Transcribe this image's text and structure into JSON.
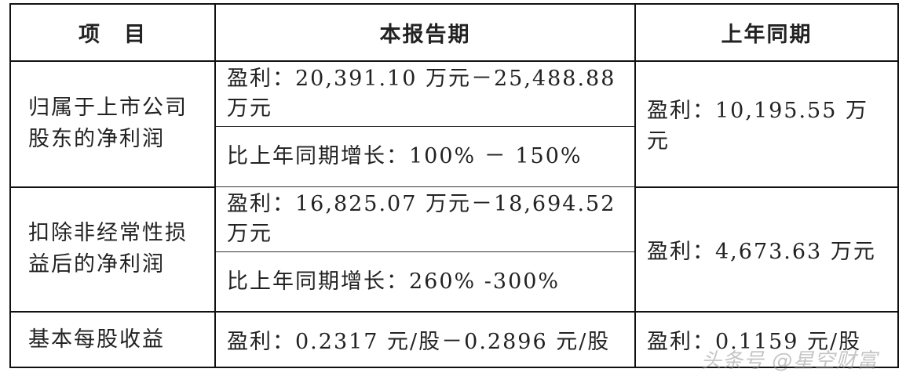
{
  "headers": [
    "项　目",
    "本报告期",
    "上年同期"
  ],
  "rows": [
    {
      "item": "归属于上市公司股东的净利润",
      "current": [
        "盈利：20,391.10 万元－25,488.88 万元",
        "比上年同期增长：100% － 150%"
      ],
      "prior": "盈利：10,195.55 万元"
    },
    {
      "item": "扣除非经常性损益后的净利润",
      "current": [
        "盈利：16,825.07 万元－18,694.52 万元",
        "比上年同期增长：260% -300%"
      ],
      "prior": "盈利：4,673.63 万元"
    },
    {
      "item": "基本每股收益",
      "current": [
        "盈利：0.2317 元/股－0.2896 元/股"
      ],
      "prior": "盈利：0.1159 元/股"
    }
  ],
  "watermark": "头条号 @星空财富"
}
